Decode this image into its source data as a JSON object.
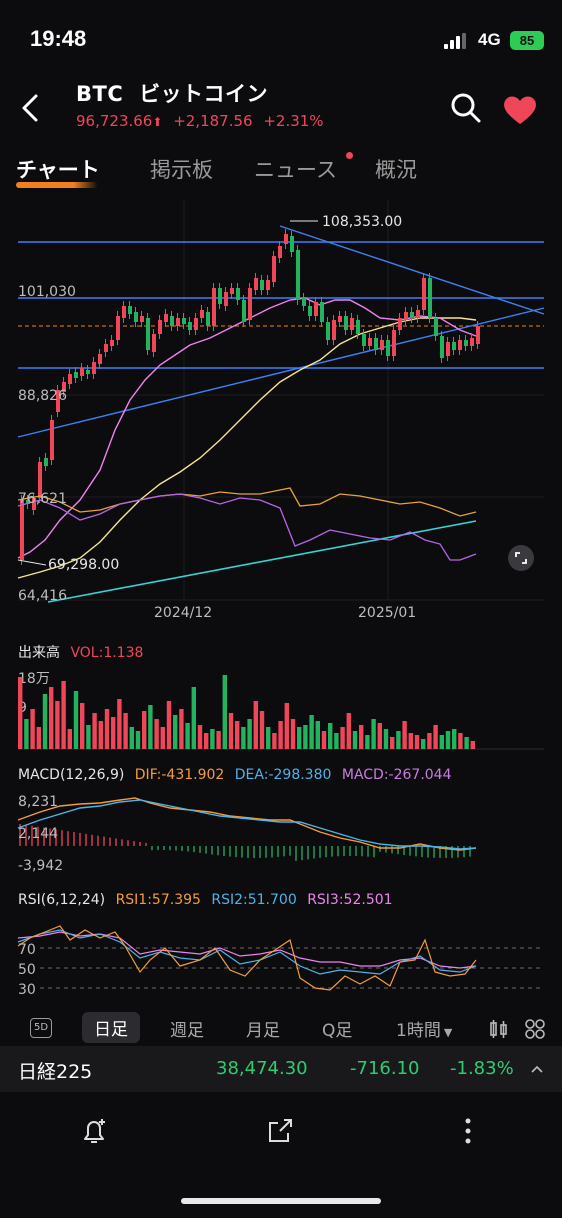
{
  "status": {
    "time": "19:48",
    "network": "4G",
    "battery": "85"
  },
  "header": {
    "symbol": "BTC",
    "name": "ビットコイン",
    "price": "96,723.66",
    "change": "+2,187.56",
    "change_pct": "+2.31%"
  },
  "tabs": [
    "チャート",
    "掲示板",
    "ニュース",
    "概況"
  ],
  "chart": {
    "price_labels": {
      "p1": "108,353.00",
      "p2": "101,030",
      "p3": "88,826",
      "p4": "76,621",
      "p5": "69,298.00",
      "p6": "64,416"
    },
    "date_labels": [
      "2024/12",
      "2025/01"
    ]
  },
  "volume": {
    "title": "出来高",
    "vol": "VOL:1.138",
    "ymax": "18万",
    "ymid": "9"
  },
  "macd": {
    "title": "MACD(12,26,9)",
    "dif": "DIF:-431.902",
    "dea": "DEA:-298.380",
    "macd": "MACD:-267.044",
    "y1": "8,231",
    "y2": "2,144",
    "y3": "-3,942"
  },
  "rsi": {
    "title": "RSI(6,12,24)",
    "rsi1": "RSI1:57.395",
    "rsi2": "RSI2:51.700",
    "rsi3": "RSI3:52.501",
    "y70": "70",
    "y50": "50",
    "y30": "30"
  },
  "periods": {
    "five_d": "5D",
    "daily": "日足",
    "weekly": "週足",
    "monthly": "月足",
    "quarterly": "Q足",
    "hourly": "1時間"
  },
  "index_ticker": {
    "name": "日経225",
    "value": "38,474.30",
    "change": "-716.10",
    "pct": "-1.83%"
  },
  "colors": {
    "up": "#f0465a",
    "down": "#22b35e",
    "ma_short": "#ee82ee",
    "ma_long": "#f0e68c",
    "trend": "#3b82f6",
    "dif": "#f39c3c",
    "dea": "#4fb3e8",
    "macd": "#c77ddd"
  }
}
